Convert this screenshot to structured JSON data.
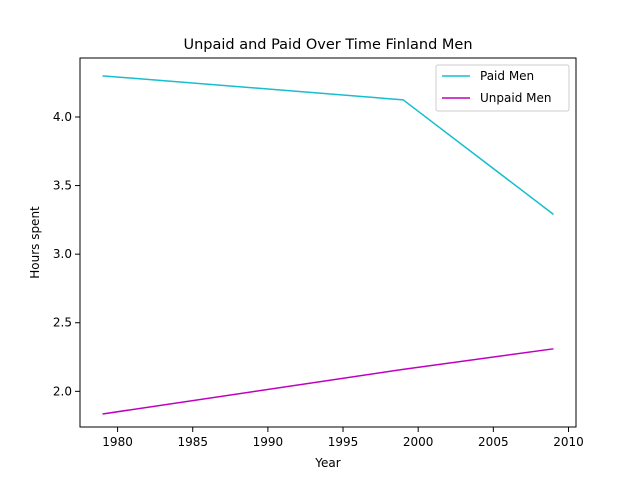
{
  "chart_data": {
    "type": "line",
    "title": "Unpaid and Paid Over Time Finland Men",
    "xlabel": "Year",
    "ylabel": "Hours spent",
    "xlim": [
      1977.5,
      2010.5
    ],
    "ylim": [
      1.74,
      4.43
    ],
    "x_ticks": [
      1980,
      1985,
      1990,
      1995,
      2000,
      2005,
      2010
    ],
    "y_ticks": [
      2.0,
      2.5,
      3.0,
      3.5,
      4.0
    ],
    "x_tick_labels": [
      "1980",
      "1985",
      "1990",
      "1995",
      "2000",
      "2005",
      "2010"
    ],
    "y_tick_labels": [
      "2.0",
      "2.5",
      "3.0",
      "3.5",
      "4.0"
    ],
    "grid": false,
    "legend_position": "top-right",
    "series": [
      {
        "name": "Paid Men",
        "color": "#17becf",
        "x": [
          1979,
          1999,
          2009
        ],
        "y": [
          4.3,
          4.125,
          3.29
        ]
      },
      {
        "name": "Unpaid Men",
        "color": "#bf00bf",
        "x": [
          1979,
          1999,
          2009
        ],
        "y": [
          1.835,
          2.16,
          2.31
        ]
      }
    ]
  }
}
